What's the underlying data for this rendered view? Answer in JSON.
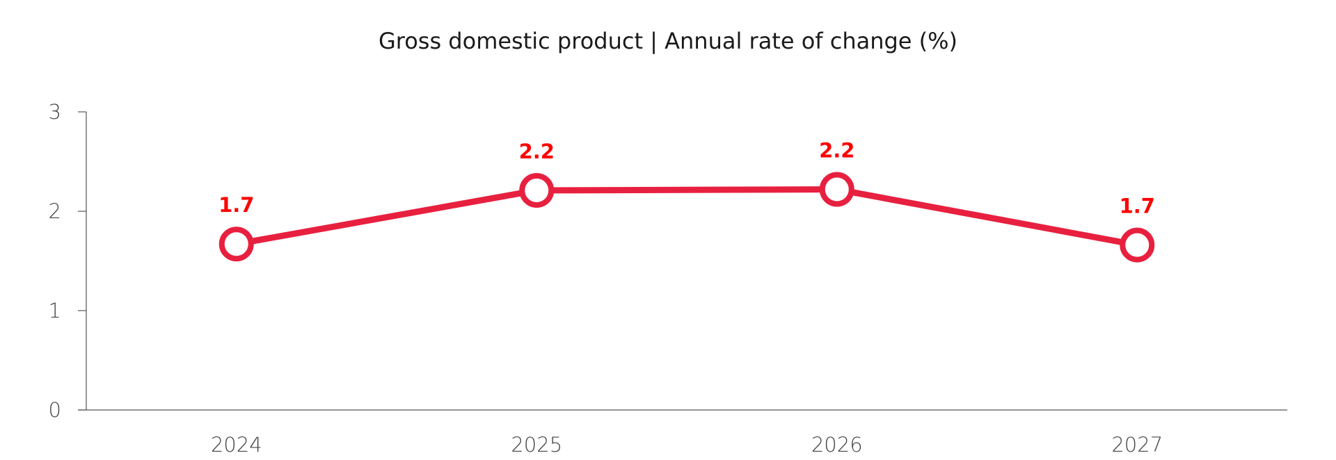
{
  "chart_data": {
    "type": "line",
    "title": "Gross domestic product | Annual rate of change (%)",
    "xlabel": "",
    "ylabel": "",
    "categories": [
      "2024",
      "2025",
      "2026",
      "2027"
    ],
    "series": [
      {
        "name": "Gross domestic product",
        "values": [
          1.7,
          2.2,
          2.2,
          1.7
        ],
        "labels": [
          "1.7",
          "2.2",
          "2.2",
          "1.7"
        ],
        "color": "#e8203f"
      }
    ],
    "y_points": [
      1.67,
      2.21,
      2.22,
      1.66
    ],
    "ylim": [
      0,
      3
    ],
    "yticks": [
      "0",
      "1",
      "2",
      "3"
    ],
    "grid": false,
    "data_label_color": "#ff0000",
    "axis_color": "#555555"
  }
}
